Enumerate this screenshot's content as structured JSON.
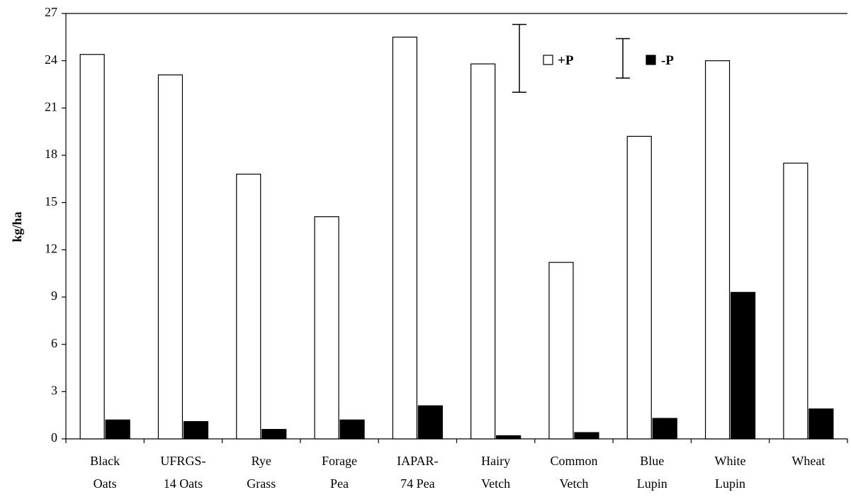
{
  "chart_data": {
    "type": "bar",
    "ylabel": "kg/ha",
    "ylim": [
      0,
      27
    ],
    "yticks": [
      "0",
      "3",
      "6",
      "9",
      "12",
      "15",
      "18",
      "21",
      "24",
      "27"
    ],
    "categories": [
      [
        "Black",
        "Oats"
      ],
      [
        "UFRGS-",
        "14 Oats"
      ],
      [
        "Rye",
        "Grass"
      ],
      [
        "Forage",
        "Pea"
      ],
      [
        "IAPAR-",
        "74 Pea"
      ],
      [
        "Hairy",
        "Vetch"
      ],
      [
        "Common",
        "Vetch"
      ],
      [
        "Blue",
        "Lupin"
      ],
      [
        "White",
        "Lupin"
      ],
      [
        "Wheat",
        ""
      ]
    ],
    "series": [
      {
        "name": "+P",
        "fill": "#ffffff",
        "values": [
          24.4,
          23.1,
          16.8,
          14.1,
          25.5,
          23.8,
          11.2,
          19.2,
          24.0,
          17.5
        ],
        "error_bar": [
          22.0,
          26.3
        ]
      },
      {
        "name": "-P",
        "fill": "#000000",
        "values": [
          1.2,
          1.1,
          0.6,
          1.2,
          2.1,
          0.2,
          0.4,
          1.3,
          9.3,
          1.9
        ],
        "error_bar": [
          22.9,
          25.4
        ]
      }
    ],
    "grid": false,
    "legend_position": "top-right"
  }
}
